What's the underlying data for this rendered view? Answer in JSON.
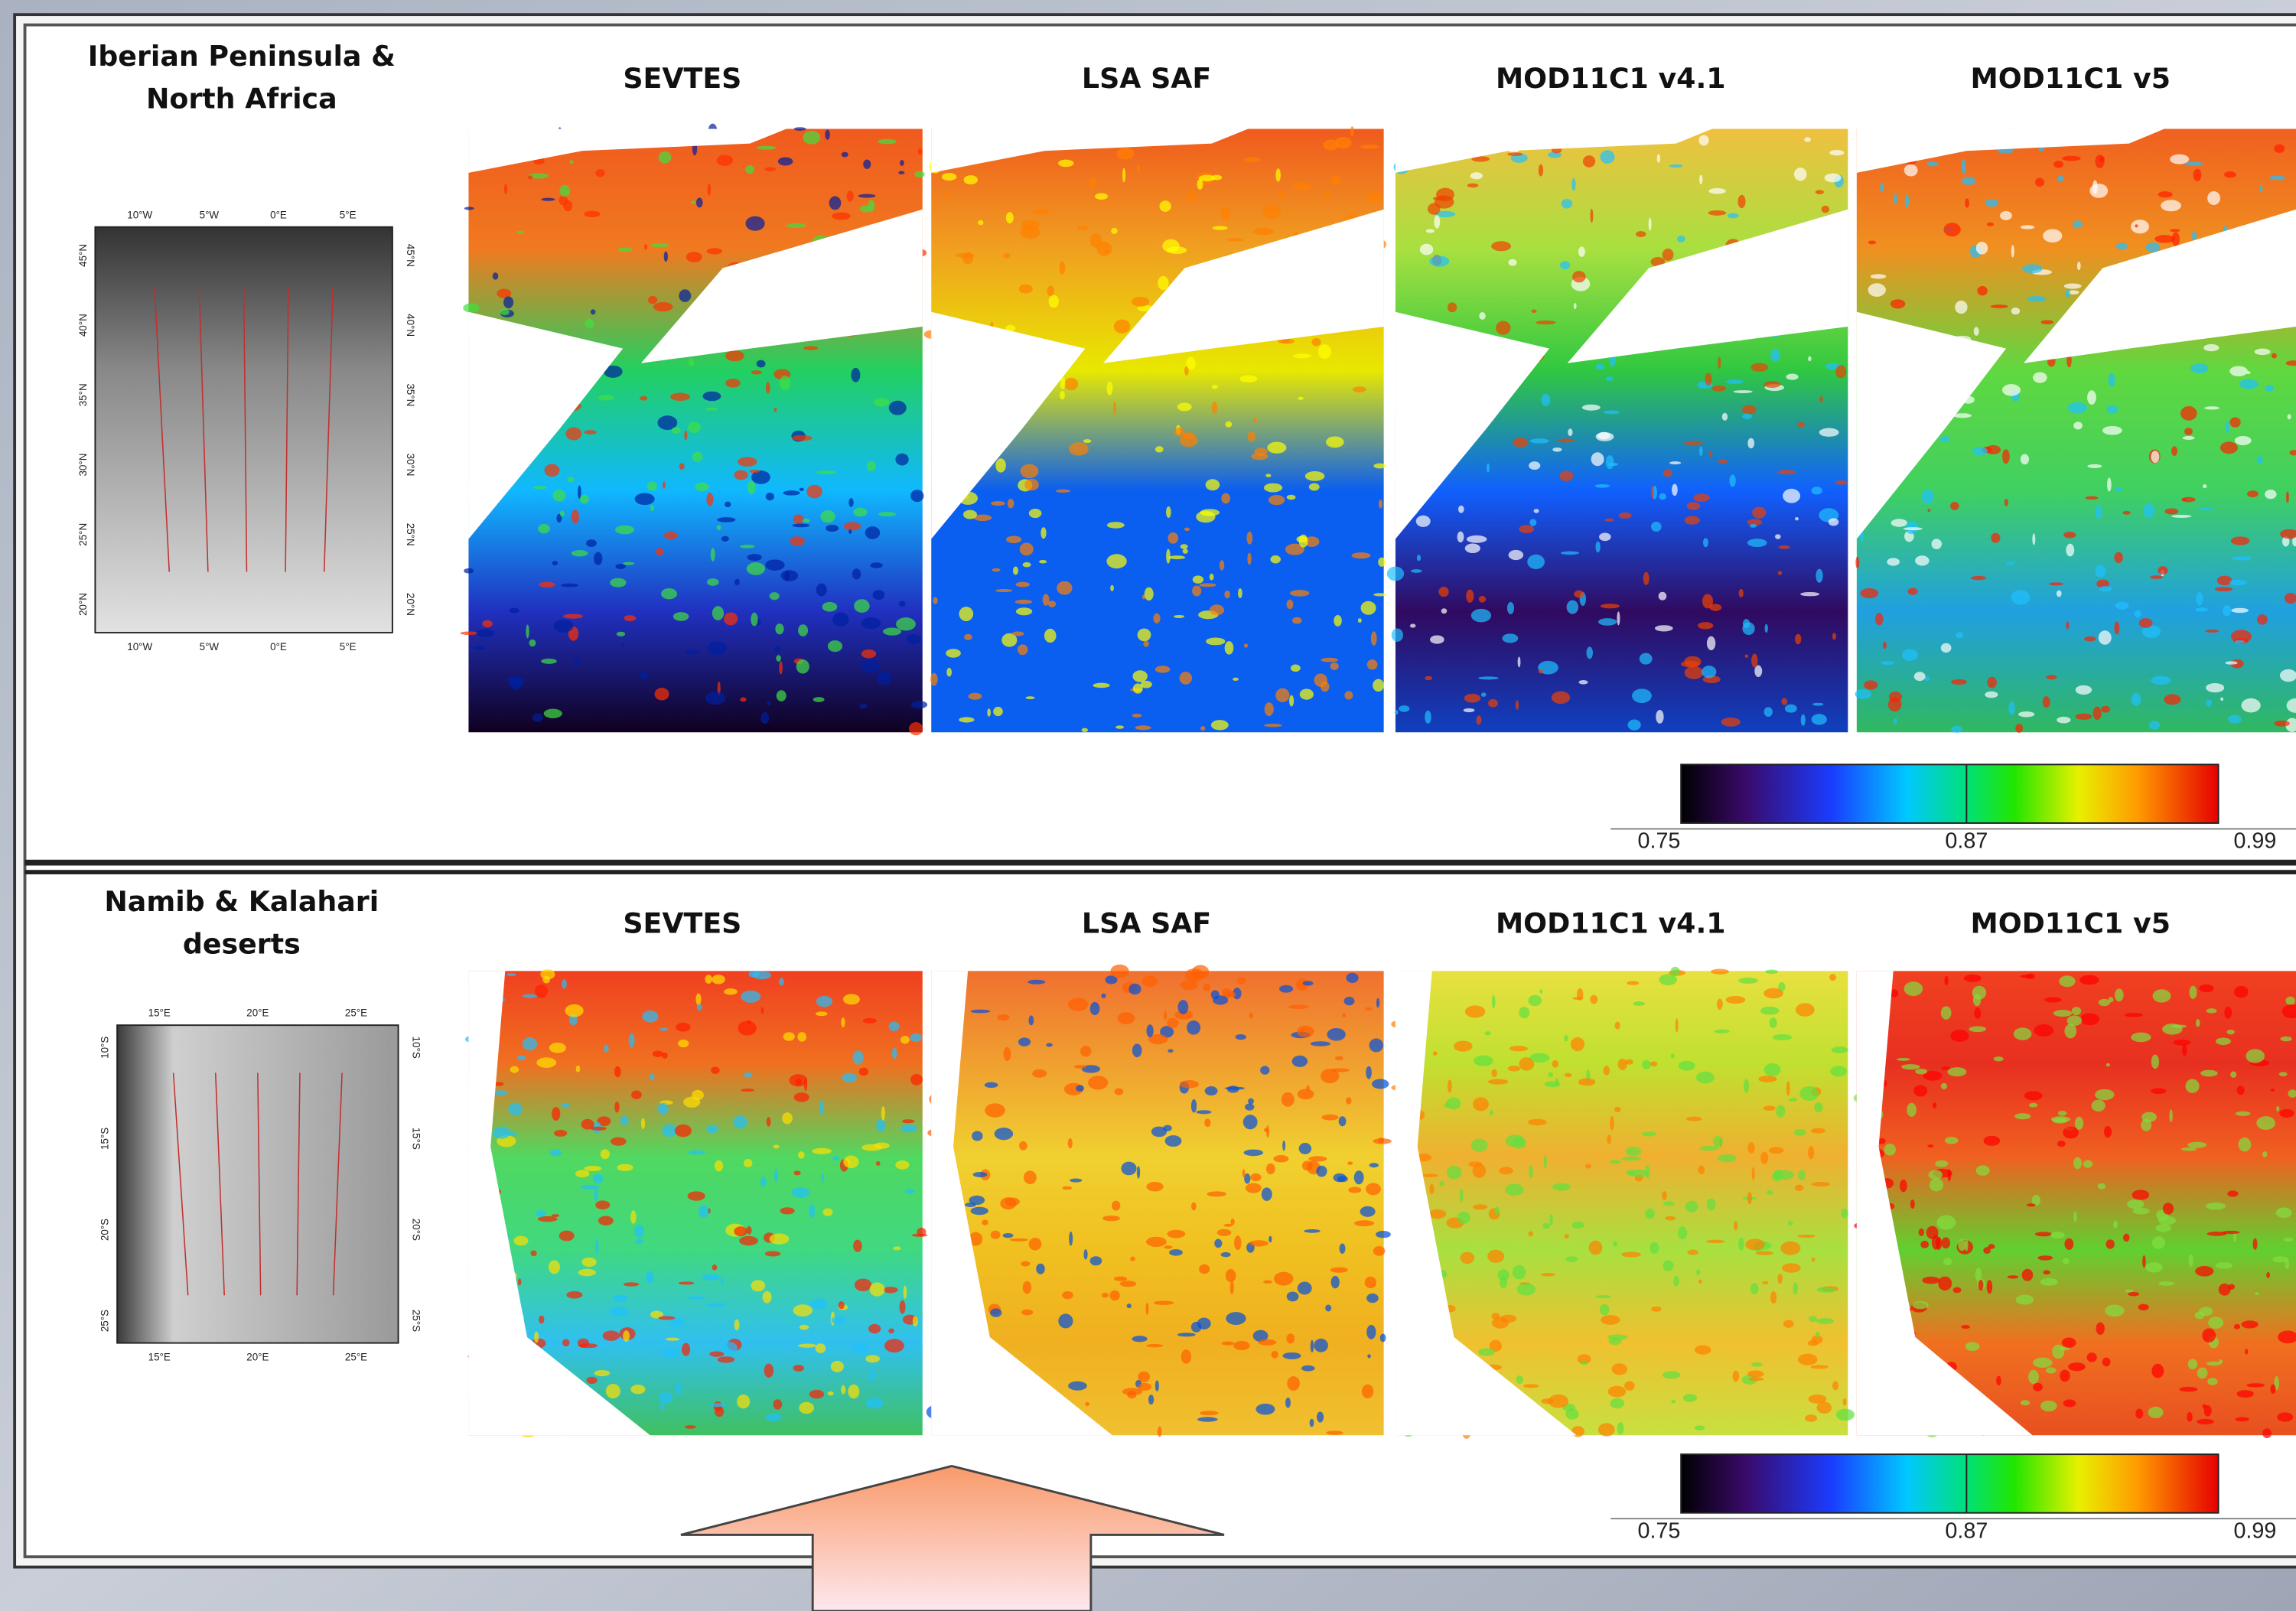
{
  "panels": [
    {
      "region_title": [
        "Iberian Peninsula &",
        "North Africa"
      ],
      "map_titles": [
        "SEVTES",
        "LSA SAF",
        "MOD11C1 v4.1",
        "MOD11C1 v5"
      ],
      "locator_map": {
        "top_labels": [
          "10°W",
          "5°W",
          "0°E",
          "5°E"
        ],
        "bottom_labels": [
          "10°W",
          "5°W",
          "0°E",
          "5°E"
        ],
        "left_labels": [
          "45°N",
          "40°N",
          "35°N",
          "30°N",
          "25°N",
          "20°N"
        ],
        "right_labels": [
          "45°N",
          "40°N",
          "35°N",
          "30°N",
          "25°N",
          "20°N"
        ]
      },
      "colorbar": {
        "labels": [
          "0.75",
          "0.87",
          "0.99"
        ]
      }
    },
    {
      "region_title": [
        "Namib & Kalahari",
        "deserts"
      ],
      "map_titles": [
        "SEVTES",
        "LSA SAF",
        "MOD11C1 v4.1",
        "MOD11C1 v5"
      ],
      "locator_map": {
        "top_labels": [
          "15°E",
          "20°E",
          "25°E"
        ],
        "bottom_labels": [
          "15°E",
          "20°E",
          "25°E"
        ],
        "left_labels": [
          "10°S",
          "15°S",
          "20°S",
          "25°S"
        ],
        "right_labels": [
          "10°S",
          "15°S",
          "20°S",
          "25°S"
        ]
      },
      "colorbar": {
        "labels": [
          "0.75",
          "0.87",
          "0.99"
        ]
      }
    }
  ]
}
